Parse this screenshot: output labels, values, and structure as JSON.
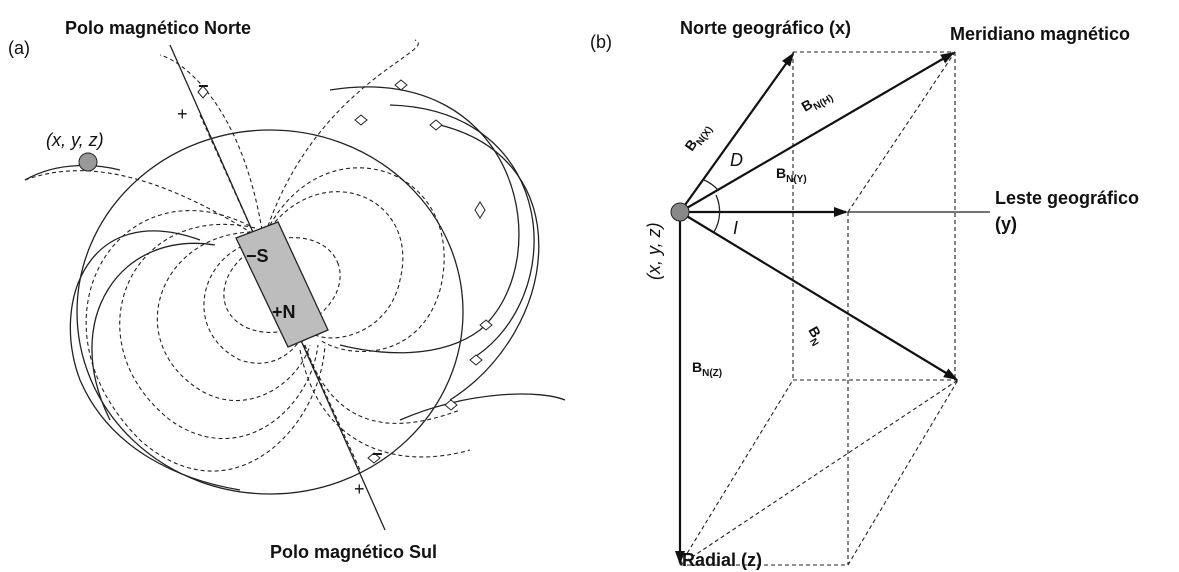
{
  "panel_a": {
    "label": "(a)",
    "north_pole": "Polo magnético Norte",
    "south_pole": "Polo magnético Sul",
    "point": "(x, y, z)",
    "magnet_s": "−S",
    "magnet_n": "+N",
    "top_minus": "−",
    "top_plus": "+",
    "bottom_minus": "−",
    "bottom_plus": "+"
  },
  "panel_b": {
    "label": "(b)",
    "north": "Norte geográfico (x)",
    "meridian": "Meridiano magnético",
    "east": "Leste geográfico",
    "east_axis": "(y)",
    "radial": "Radial (z)",
    "point": "(x, y, z)",
    "angle_d": "D",
    "angle_i": "I",
    "bnx": {
      "main": "B",
      "sub": "N(X)"
    },
    "bnh": {
      "main": "B",
      "sub": "N(H)"
    },
    "bny": {
      "main": "B",
      "sub": "N(Y)"
    },
    "bn": {
      "main": "B",
      "sub": "N"
    },
    "bnz": {
      "main": "B",
      "sub": "N(Z)"
    }
  }
}
